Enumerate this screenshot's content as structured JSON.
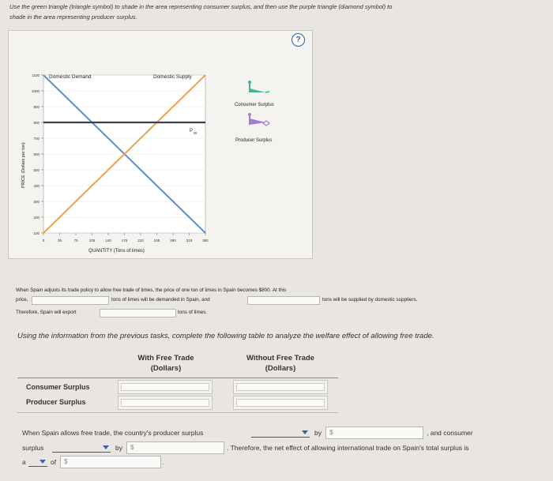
{
  "instructions": {
    "line1": "Use the green triangle (triangle symbol) to shade in the area representing consumer surplus, and then use the purple triangle (diamond symbol) to",
    "line2": "shade in the area representing producer surplus."
  },
  "graph": {
    "help_label": "?",
    "demand_label": "Domestic Demand",
    "supply_label": "Domestic Supply",
    "pw_label_p": "P",
    "pw_label_w": "W",
    "y_axis_label": "PRICE (Dollars per ton)",
    "x_axis_label": "QUANTITY (Tons of limes)",
    "y_ticks": [
      "1100",
      "1000",
      "900",
      "800",
      "700",
      "600",
      "500",
      "400",
      "300",
      "200",
      "100"
    ],
    "x_ticks": [
      "0",
      "35",
      "70",
      "105",
      "140",
      "175",
      "210",
      "245",
      "280",
      "315",
      "350"
    ],
    "legend": {
      "consumer_surplus": "Consumer Surplus",
      "producer_surplus": "Producer Surplus",
      "consumer_color": "#3cb89b",
      "producer_color": "#a77ad6"
    },
    "colors": {
      "demand": "#5b8ec9",
      "supply": "#f0a04b",
      "world_price": "#3a3f4a"
    }
  },
  "chart_data": {
    "type": "line",
    "xlabel": "QUANTITY (Tons of limes)",
    "ylabel": "PRICE (Dollars per ton)",
    "xlim": [
      0,
      350
    ],
    "ylim": [
      100,
      1100
    ],
    "series": [
      {
        "name": "Domestic Demand",
        "x": [
          0,
          350
        ],
        "y": [
          1100,
          100
        ]
      },
      {
        "name": "Domestic Supply",
        "x": [
          0,
          350
        ],
        "y": [
          100,
          1100
        ]
      },
      {
        "name": "Pw",
        "x": [
          0,
          350
        ],
        "y": [
          800,
          800
        ]
      }
    ]
  },
  "spain_text": {
    "line1": "When Spain adjusts its trade policy to allow free trade of limes, the price of one ton of limes in Spain becomes $800. At this",
    "line2a": "price,",
    "line2b": "tons of limes will be demanded in Spain, and",
    "line2c": "tons will be supplied by domestic suppliers.",
    "line3a": "Therefore, Spain will export",
    "line3b": "tons of limes."
  },
  "table_prompt": "Using the information from the previous tasks, complete the following table to analyze the welfare effect of allowing free trade.",
  "table": {
    "col1_line1": "With Free Trade",
    "col1_line2": "(Dollars)",
    "col2_line1": "Without Free Trade",
    "col2_line2": "(Dollars)",
    "rows": [
      "Consumer Surplus",
      "Producer Surplus"
    ]
  },
  "summary": {
    "part1": "When Spain allows free trade, the country's producer surplus",
    "by": "by",
    "dollar": "$",
    "part2": ", and consumer",
    "part3": "surplus",
    "part4": ". Therefore, the net effect of allowing international trade on Spain's total surplus is",
    "part5": "a",
    "part6": "of",
    "part7": "."
  }
}
